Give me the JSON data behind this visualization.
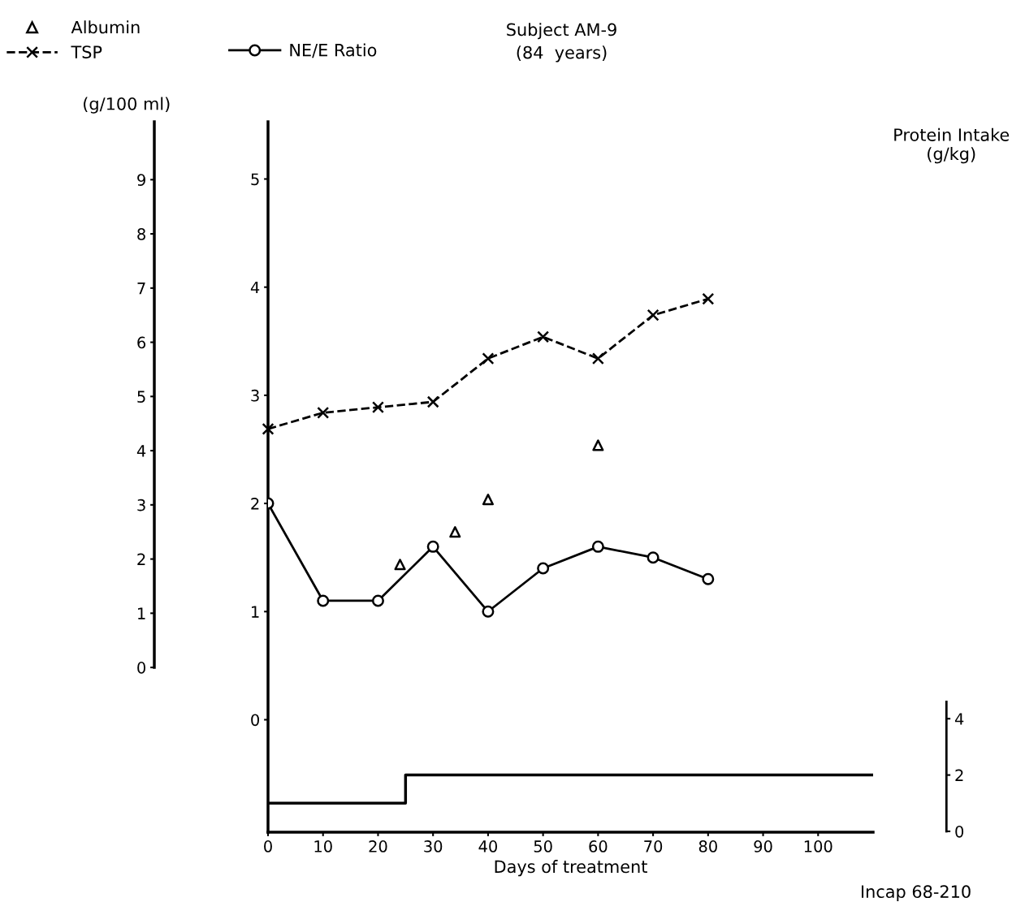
{
  "chart_data": {
    "type": "line",
    "title": "Subject AM-9",
    "subtitle": "(84  years)",
    "xlabel": "Days of treatment",
    "ylabel": "Protein Intake (g/kg)",
    "y3label": "(g/100 ml)",
    "annotations": [
      "Incap 68-210"
    ],
    "xlim": [
      0,
      110
    ],
    "xticks": [
      0,
      10,
      20,
      30,
      40,
      50,
      60,
      70,
      80,
      90,
      100
    ],
    "ylim": [
      -0.03,
      25.2
    ],
    "yticks": [
      0,
      2,
      4
    ],
    "y2lim": [
      -1.04,
      5.53
    ],
    "y2ticks": [
      0,
      1,
      2,
      3,
      4,
      5
    ],
    "y3lim": [
      -3.04,
      10.07
    ],
    "y3ticks": [
      0,
      1,
      2,
      3,
      4,
      5,
      6,
      7,
      8,
      9
    ],
    "grid": false,
    "legend": "top left",
    "series": [
      {
        "name": "Albumin",
        "type": "scatter",
        "axis": "y3",
        "color": "#000000",
        "marker": "triangle",
        "x": [
          24,
          34,
          40,
          60
        ],
        "values": [
          1.9,
          2.5,
          3.1,
          4.1
        ]
      },
      {
        "name": "TSP",
        "axis": "y3",
        "color": "#000000",
        "marker": "cross",
        "line_style": "dashed",
        "x": [
          0,
          10,
          20,
          30,
          40,
          50,
          60,
          70,
          80
        ],
        "values": [
          4.4,
          4.7,
          4.8,
          4.9,
          5.7,
          6.1,
          5.7,
          6.5,
          6.8
        ]
      },
      {
        "name": "NE/E Ratio",
        "axis": "y2",
        "color": "#000000",
        "marker": "circle",
        "line_style": "solid",
        "x": [
          0,
          10,
          20,
          30,
          40,
          50,
          60,
          70,
          80
        ],
        "values": [
          2.0,
          1.1,
          1.1,
          1.6,
          1.0,
          1.4,
          1.6,
          1.5,
          1.3
        ]
      },
      {
        "type": "step",
        "axis": "y",
        "color": "#000000",
        "line_style": "solid",
        "x": [
          0,
          25,
          110
        ],
        "values": [
          1,
          2,
          2
        ]
      }
    ]
  }
}
